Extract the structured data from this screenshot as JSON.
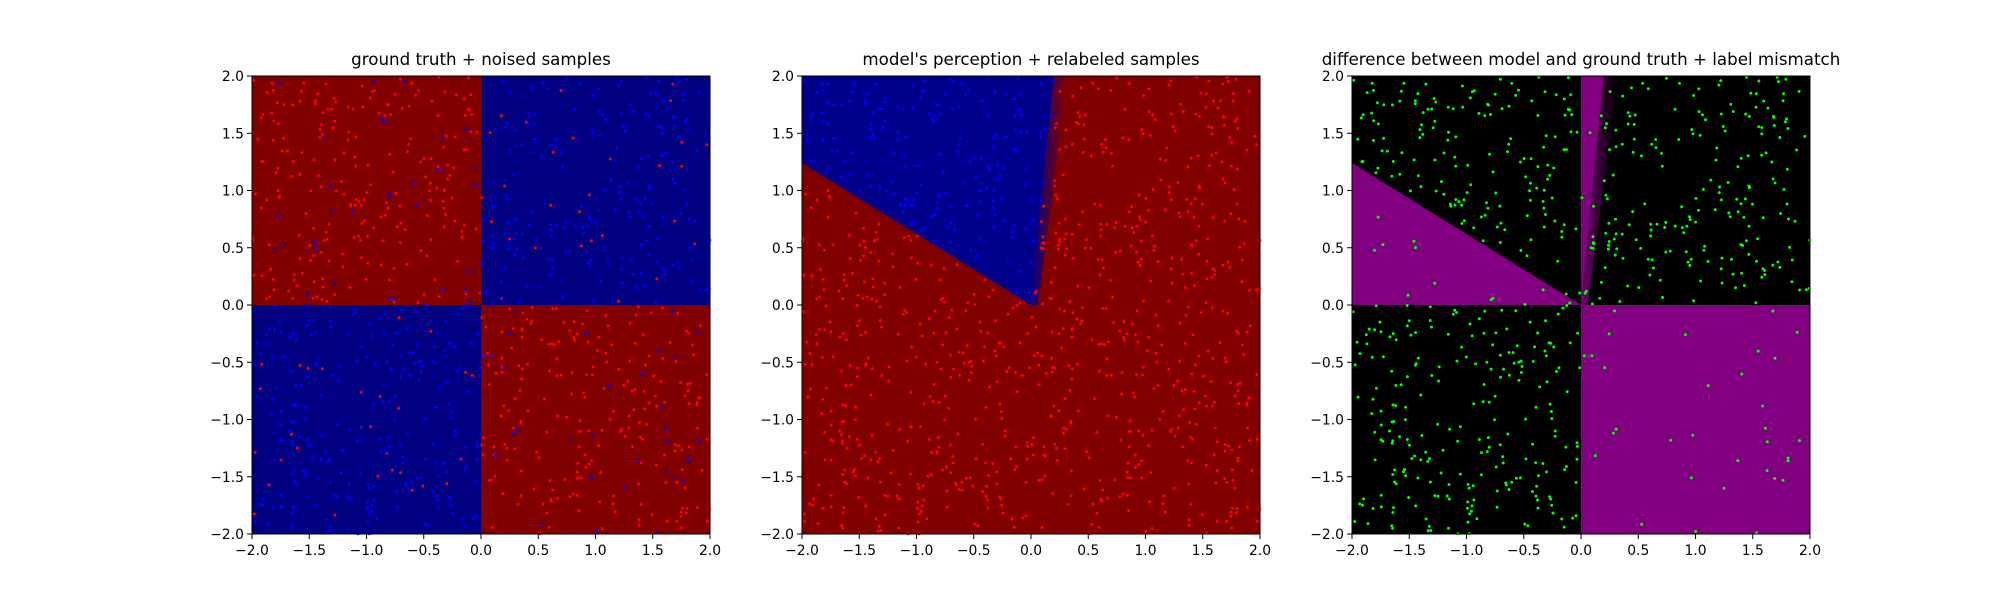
{
  "chart_data": [
    {
      "type": "heatmap",
      "title": "ground truth + noised samples",
      "xlim": [
        -2.0,
        2.0
      ],
      "ylim": [
        -2.0,
        2.0
      ],
      "xticks": [
        "−2.0",
        "−1.5",
        "−1.0",
        "−0.5",
        "0.0",
        "0.5",
        "1.0",
        "1.5",
        "2.0"
      ],
      "yticks": [
        "−2.0",
        "−1.5",
        "−1.0",
        "−0.5",
        "0.0",
        "0.5",
        "1.0",
        "1.5",
        "2.0"
      ],
      "grid": false,
      "background": {
        "regions": [
          {
            "quadrant": "x<0,y>0",
            "color": "#800000"
          },
          {
            "quadrant": "x>0,y>0",
            "color": "#000080"
          },
          {
            "quadrant": "x<0,y<0",
            "color": "#000080"
          },
          {
            "quadrant": "x>0,y<0",
            "color": "#800000"
          }
        ]
      },
      "points": {
        "seed": 11,
        "colors_same_class": "#0000ff",
        "colors_other_class": "#ff0000",
        "n": 1000
      }
    },
    {
      "type": "heatmap",
      "title": "model's perception + relabeled samples",
      "xlim": [
        -2.0,
        2.0
      ],
      "ylim": [
        -2.0,
        2.0
      ],
      "xticks": [
        "−2.0",
        "−1.5",
        "−1.0",
        "−0.5",
        "0.0",
        "0.5",
        "1.0",
        "1.5",
        "2.0"
      ],
      "yticks": [
        "−2.0",
        "−1.5",
        "−1.0",
        "−0.5",
        "0.0",
        "0.5",
        "1.0",
        "1.5",
        "2.0"
      ],
      "grid": false,
      "background": {
        "blue_region": "wedge between line y = -0.62x (x<0) and line x = 0.12y (upper half)",
        "blue_color": "#00008b",
        "red_color": "#800000"
      },
      "points": {
        "seed": 11,
        "n": 1000
      }
    },
    {
      "type": "heatmap",
      "title": "difference between model and ground truth + label mismatch",
      "xlim": [
        -2.0,
        2.0
      ],
      "ylim": [
        -2.0,
        2.0
      ],
      "xticks": [
        "−2.0",
        "−1.5",
        "−1.0",
        "−0.5",
        "0.0",
        "0.5",
        "1.0",
        "1.5",
        "2.0"
      ],
      "yticks": [
        "−2.0",
        "−1.5",
        "−1.0",
        "−0.5",
        "0.0",
        "0.5",
        "1.0",
        "1.5",
        "2.0"
      ],
      "grid": false,
      "background": {
        "match_color": "#000000",
        "mismatch_color": "#800080"
      },
      "points": {
        "seed": 11,
        "color": "#00ff00",
        "n": 1000
      }
    }
  ]
}
